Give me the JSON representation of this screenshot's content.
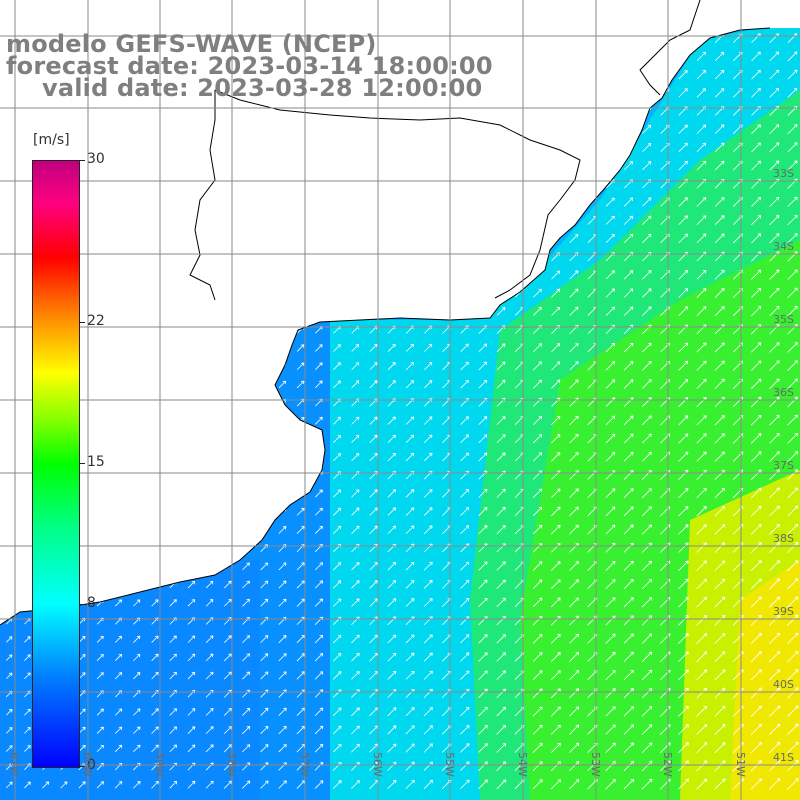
{
  "title": {
    "line1": "modelo GEFS-WAVE (NCEP)",
    "line2": "forecast date: 2023-03-14 18:00:00",
    "line3": "valid date: 2023-03-28 12:00:00"
  },
  "colorbar": {
    "unit": "[m/s]",
    "min": 0,
    "max": 30,
    "ticks": [
      {
        "value": 30,
        "label": "30"
      },
      {
        "value": 22,
        "label": "22"
      },
      {
        "value": 15,
        "label": "15"
      },
      {
        "value": 8,
        "label": "8"
      },
      {
        "value": 0,
        "label": "0"
      }
    ]
  },
  "lat_labels": [
    "33S",
    "34S",
    "35S",
    "36S",
    "37S",
    "38S",
    "39S",
    "40S",
    "41S"
  ],
  "lon_labels": [
    "61W",
    "60W",
    "59W",
    "58W",
    "57W",
    "56W",
    "55W",
    "54W",
    "53W",
    "52W",
    "51W"
  ],
  "field": {
    "variable": "wind speed",
    "arrow_direction": "northeast",
    "colors": {
      "land": "#ffffff",
      "coast": "#000000",
      "grid": "#808080",
      "arrow": "#ffffff"
    }
  }
}
